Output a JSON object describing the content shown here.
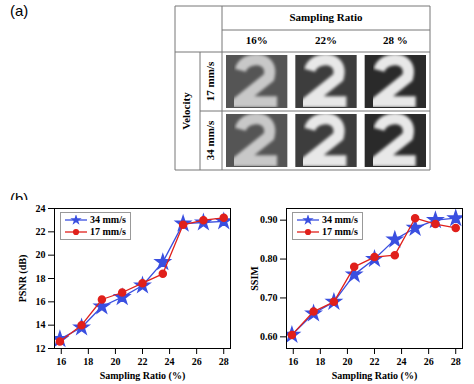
{
  "panel_a": {
    "label": "(a)",
    "header": "Sampling Ratio",
    "columns": [
      "16%",
      "22%",
      "28 %"
    ],
    "row_header": "Velocity",
    "rows": [
      "17 mm/s",
      "34 mm/s"
    ]
  },
  "panel_b": {
    "label": "(b)"
  },
  "chart_data": [
    {
      "type": "line",
      "x_label": "Sampling Ratio (%)",
      "y_label": "PSNR (dB)",
      "x": [
        15.9,
        17.5,
        19,
        20.5,
        22,
        23.5,
        25,
        26.5,
        28
      ],
      "xlim": [
        15.5,
        28.5
      ],
      "xticks": [
        16,
        18,
        20,
        22,
        24,
        26,
        28
      ],
      "ylim": [
        12,
        24
      ],
      "yticks": [
        12,
        14,
        16,
        18,
        20,
        22,
        24
      ],
      "legend": "upper left",
      "series": [
        {
          "name": "34 mm/s",
          "color": "#3a4fe0",
          "marker": "star",
          "values": [
            12.8,
            13.8,
            15.6,
            16.4,
            17.4,
            19.4,
            22.7,
            22.8,
            22.9
          ]
        },
        {
          "name": "17 mm/s",
          "color": "#e0201b",
          "marker": "circle",
          "values": [
            12.6,
            14.0,
            16.2,
            16.8,
            17.6,
            18.4,
            22.6,
            23.0,
            23.2
          ]
        }
      ]
    },
    {
      "type": "line",
      "x_label": "Sampling Ratio (%)",
      "y_label": "SSIM",
      "x": [
        15.9,
        17.5,
        19,
        20.5,
        22,
        23.5,
        25,
        26.5,
        28
      ],
      "xlim": [
        15.5,
        28.5
      ],
      "xticks": [
        16,
        18,
        20,
        22,
        24,
        26,
        28
      ],
      "ylim": [
        0.57,
        0.93
      ],
      "yticks": [
        0.6,
        0.7,
        0.8,
        0.9
      ],
      "legend": "upper left",
      "series": [
        {
          "name": "34 mm/s",
          "color": "#3a4fe0",
          "marker": "star",
          "values": [
            0.605,
            0.66,
            0.69,
            0.76,
            0.8,
            0.85,
            0.88,
            0.9,
            0.905
          ]
        },
        {
          "name": "17 mm/s",
          "color": "#e0201b",
          "marker": "circle",
          "values": [
            0.605,
            0.665,
            0.69,
            0.78,
            0.805,
            0.81,
            0.905,
            0.89,
            0.88
          ]
        }
      ]
    }
  ]
}
